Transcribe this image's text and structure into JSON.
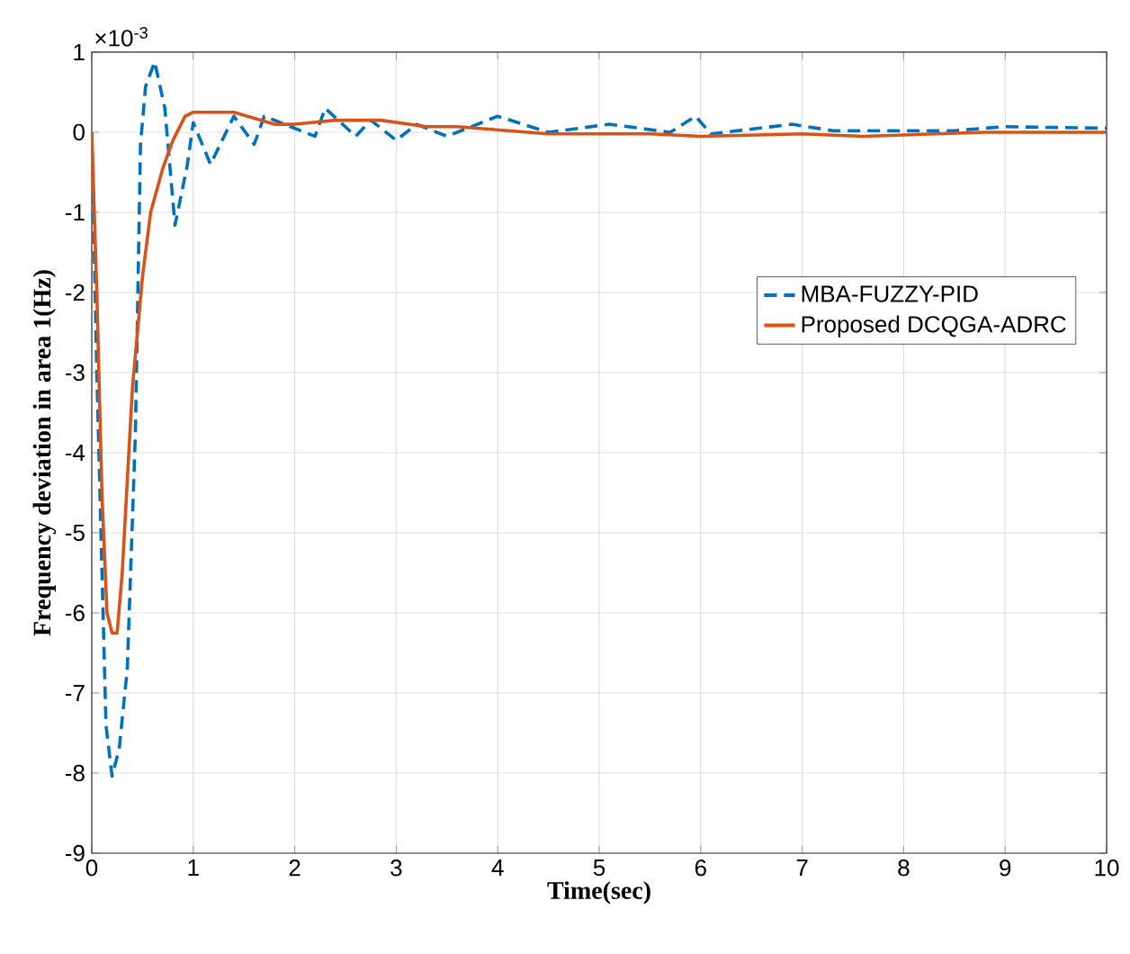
{
  "chart_data": {
    "type": "line",
    "xlabel": "Time(sec)",
    "ylabel": "Frequency deviation in area 1(Hz)",
    "annotations": [
      "×10$^{-3}$"
    ],
    "xlim": [
      0,
      10
    ],
    "ylim": [
      -9,
      1
    ],
    "xticks": [
      0,
      1,
      2,
      3,
      4,
      5,
      6,
      7,
      8,
      9,
      10
    ],
    "yticks": [
      -9,
      -8,
      -7,
      -6,
      -5,
      -4,
      -3,
      -2,
      -1,
      0,
      1
    ],
    "grid": true,
    "legend": "right",
    "series": [
      {
        "name": "MBA-FUZZY-PID",
        "color": "#0072bd",
        "line_style": "dashed",
        "x": [
          0,
          0.05,
          0.14,
          0.2,
          0.27,
          0.35,
          0.43,
          0.48,
          0.53,
          0.62,
          0.72,
          0.82,
          0.94,
          1.0,
          1.17,
          1.4,
          1.6,
          1.7,
          1.9,
          2.2,
          2.3,
          2.6,
          2.75,
          3.0,
          3.2,
          3.5,
          4.0,
          4.5,
          5.1,
          5.7,
          5.95,
          6.1,
          6.9,
          7.3,
          8.5,
          9.0,
          10
        ],
        "values": [
          0,
          -3,
          -7.4,
          -8.04,
          -7.7,
          -6.7,
          -3.75,
          -0.15,
          0.57,
          0.88,
          0.3,
          -1.16,
          -0.42,
          0.12,
          -0.4,
          0.2,
          -0.15,
          0.2,
          0.1,
          -0.05,
          0.3,
          -0.05,
          0.15,
          -0.1,
          0.1,
          -0.05,
          0.2,
          0.0,
          0.1,
          0.0,
          0.2,
          -0.02,
          0.1,
          0.02,
          0.02,
          0.07,
          0.05
        ]
      },
      {
        "name": "Proposed DCQGA-ADRC",
        "color": "#d95319",
        "line_style": "solid",
        "x": [
          0,
          0.05,
          0.1,
          0.15,
          0.2,
          0.25,
          0.3,
          0.4,
          0.5,
          0.58,
          0.7,
          0.8,
          0.92,
          1.0,
          1.4,
          1.8,
          2.0,
          2.4,
          2.85,
          3.3,
          3.6,
          4.5,
          5.5,
          6.0,
          7.0,
          7.6,
          8.8,
          10
        ],
        "values": [
          0,
          -2,
          -4.5,
          -6,
          -6.25,
          -6.25,
          -5.5,
          -3.2,
          -1.8,
          -1.0,
          -0.45,
          -0.1,
          0.2,
          0.25,
          0.25,
          0.1,
          0.1,
          0.15,
          0.15,
          0.07,
          0.07,
          -0.02,
          -0.02,
          -0.05,
          -0.02,
          -0.05,
          0,
          0
        ]
      }
    ]
  }
}
